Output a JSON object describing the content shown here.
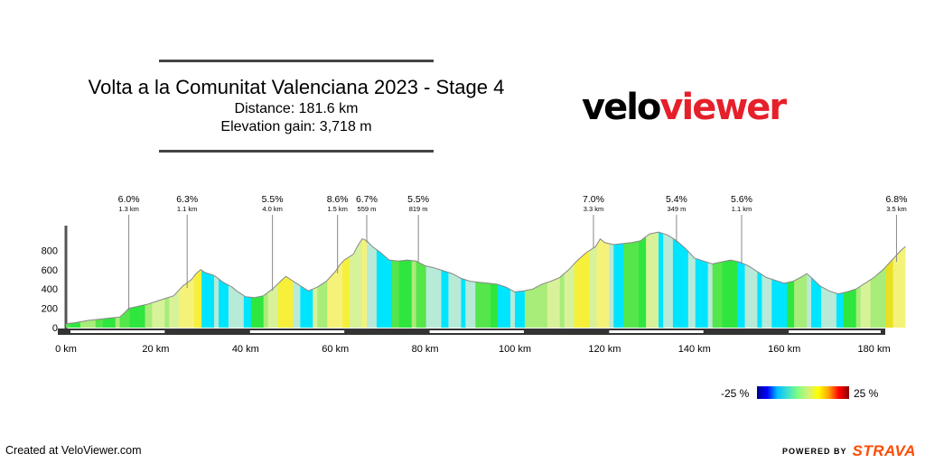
{
  "header": {
    "title": "Volta a la Comunitat Valenciana 2023 - Stage 4",
    "distance": "Distance: 181.6 km",
    "elevation_gain": "Elevation gain: 3,718 m"
  },
  "logo": {
    "part1": "velo",
    "part2": "viewer"
  },
  "legend": {
    "min_label": "-25 %",
    "max_label": "25 %"
  },
  "footer": {
    "created": "Created at VeloViewer.com",
    "powered_by": "POWERED BY",
    "strava": "STRAVA"
  },
  "colors": {
    "climb_marker": "#888888",
    "accent": "#e5202a",
    "strava": "#fc4c02"
  },
  "chart_data": {
    "type": "area",
    "xlabel": "",
    "ylabel": "",
    "x_unit": "km",
    "xlim": [
      0,
      182
    ],
    "ylim": [
      0,
      1000
    ],
    "x_ticks": [
      "0 km",
      "20 km",
      "40 km",
      "60 km",
      "80 km",
      "100 km",
      "120 km",
      "140 km",
      "160 km",
      "180 km"
    ],
    "y_ticks": [
      "0",
      "200",
      "400",
      "600",
      "800"
    ],
    "profile": [
      [
        0,
        40
      ],
      [
        2,
        50
      ],
      [
        5,
        75
      ],
      [
        8,
        90
      ],
      [
        10,
        100
      ],
      [
        12,
        110
      ],
      [
        13,
        150
      ],
      [
        14,
        200
      ],
      [
        16,
        220
      ],
      [
        18,
        240
      ],
      [
        20,
        270
      ],
      [
        22,
        300
      ],
      [
        24,
        330
      ],
      [
        25,
        380
      ],
      [
        26,
        430
      ],
      [
        28,
        500
      ],
      [
        29,
        560
      ],
      [
        30,
        600
      ],
      [
        31,
        570
      ],
      [
        33,
        540
      ],
      [
        35,
        470
      ],
      [
        37,
        420
      ],
      [
        38,
        380
      ],
      [
        40,
        320
      ],
      [
        42,
        310
      ],
      [
        44,
        330
      ],
      [
        46,
        400
      ],
      [
        48,
        490
      ],
      [
        49,
        530
      ],
      [
        50,
        500
      ],
      [
        52,
        440
      ],
      [
        54,
        380
      ],
      [
        56,
        420
      ],
      [
        58,
        480
      ],
      [
        60,
        580
      ],
      [
        61,
        650
      ],
      [
        62,
        700
      ],
      [
        63,
        730
      ],
      [
        64,
        760
      ],
      [
        65,
        850
      ],
      [
        66,
        920
      ],
      [
        67,
        900
      ],
      [
        68,
        850
      ],
      [
        70,
        780
      ],
      [
        72,
        700
      ],
      [
        74,
        690
      ],
      [
        76,
        700
      ],
      [
        78,
        690
      ],
      [
        80,
        640
      ],
      [
        82,
        620
      ],
      [
        84,
        590
      ],
      [
        86,
        560
      ],
      [
        88,
        510
      ],
      [
        90,
        480
      ],
      [
        92,
        470
      ],
      [
        94,
        460
      ],
      [
        96,
        450
      ],
      [
        98,
        420
      ],
      [
        100,
        370
      ],
      [
        102,
        380
      ],
      [
        104,
        400
      ],
      [
        106,
        450
      ],
      [
        108,
        480
      ],
      [
        110,
        520
      ],
      [
        112,
        600
      ],
      [
        114,
        700
      ],
      [
        116,
        780
      ],
      [
        118,
        840
      ],
      [
        119,
        920
      ],
      [
        120,
        880
      ],
      [
        122,
        860
      ],
      [
        124,
        870
      ],
      [
        126,
        880
      ],
      [
        128,
        900
      ],
      [
        130,
        970
      ],
      [
        132,
        990
      ],
      [
        134,
        960
      ],
      [
        136,
        900
      ],
      [
        138,
        820
      ],
      [
        140,
        720
      ],
      [
        142,
        690
      ],
      [
        144,
        660
      ],
      [
        146,
        680
      ],
      [
        148,
        700
      ],
      [
        150,
        680
      ],
      [
        152,
        640
      ],
      [
        154,
        580
      ],
      [
        156,
        520
      ],
      [
        158,
        490
      ],
      [
        160,
        460
      ],
      [
        162,
        480
      ],
      [
        164,
        530
      ],
      [
        165,
        560
      ],
      [
        166,
        520
      ],
      [
        168,
        430
      ],
      [
        170,
        380
      ],
      [
        172,
        350
      ],
      [
        174,
        370
      ],
      [
        176,
        400
      ],
      [
        178,
        460
      ],
      [
        180,
        520
      ],
      [
        182,
        600
      ],
      [
        184,
        700
      ],
      [
        186,
        800
      ],
      [
        187,
        840
      ]
    ],
    "climbs": [
      {
        "km": 14.0,
        "gradient": "6.0%",
        "length": "1.3 km"
      },
      {
        "km": 27.0,
        "gradient": "6.3%",
        "length": "1.1 km"
      },
      {
        "km": 46.0,
        "gradient": "5.5%",
        "length": "4.0 km"
      },
      {
        "km": 60.5,
        "gradient": "8.6%",
        "length": "1.5 km"
      },
      {
        "km": 67.0,
        "gradient": "6.7%",
        "length": "559 m"
      },
      {
        "km": 78.5,
        "gradient": "5.5%",
        "length": "819 m"
      },
      {
        "km": 117.5,
        "gradient": "7.0%",
        "length": "3.3 km"
      },
      {
        "km": 136.0,
        "gradient": "5.4%",
        "length": "349 m"
      },
      {
        "km": 150.5,
        "gradient": "5.6%",
        "length": "1.1 km"
      },
      {
        "km": 185.0,
        "gradient": "6.8%",
        "length": "3.5 km"
      }
    ]
  }
}
